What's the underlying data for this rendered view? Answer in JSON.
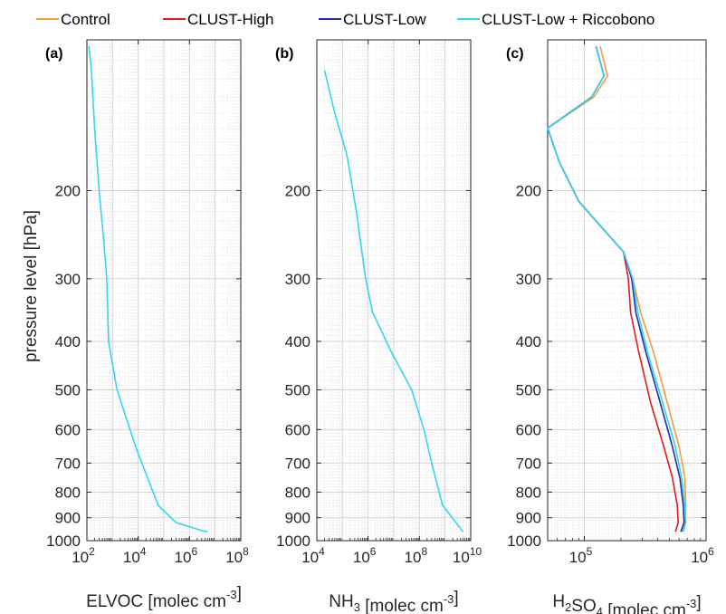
{
  "legend": [
    {
      "label": "Control",
      "color": "#f39c3c"
    },
    {
      "label": "CLUST-High",
      "color": "#e31a1c"
    },
    {
      "label": "CLUST-Low",
      "color": "#1f2fa8"
    },
    {
      "label": "CLUST-Low + Riccobono",
      "color": "#33d6f0"
    }
  ],
  "ylabel": "pressure level [hPa]",
  "chart_data": [
    {
      "type": "line",
      "panel_label": "(a)",
      "xlabel": "ELVOC [molec cm-3]",
      "xscale": "log",
      "xlim": [
        100,
        100000000
      ],
      "xticks": [
        100,
        10000,
        1000000,
        100000000
      ],
      "yscale": "log",
      "ylim": [
        1000,
        100
      ],
      "yticks": [
        200,
        300,
        400,
        500,
        600,
        700,
        800,
        900,
        1000
      ],
      "grid": true,
      "series": [
        {
          "name": "CLUST-Low + Riccobono",
          "x": [
            120,
            150,
            200,
            300,
            450,
            600,
            700,
            1500,
            8000,
            60000,
            300000,
            3000000,
            5000000
          ],
          "y": [
            103,
            115,
            150,
            200,
            250,
            300,
            400,
            500,
            650,
            850,
            920,
            955,
            960
          ]
        }
      ]
    },
    {
      "type": "line",
      "panel_label": "(b)",
      "xlabel": "NH3 [molec cm-3]",
      "xscale": "log",
      "xlim": [
        10000,
        10000000000
      ],
      "xticks": [
        10000,
        1000000,
        100000000,
        10000000000
      ],
      "yscale": "log",
      "ylim": [
        1000,
        100
      ],
      "yticks": [
        200,
        300,
        400,
        500,
        600,
        700,
        800,
        900,
        1000
      ],
      "grid": true,
      "series": [
        {
          "name": "CLUST-Low + Riccobono",
          "x": [
            20000,
            50000,
            150000,
            350000,
            600000,
            800000,
            1500000,
            8000000,
            50000000,
            150000000,
            300000000,
            800000000,
            5000000000
          ],
          "y": [
            115,
            140,
            170,
            220,
            270,
            300,
            350,
            420,
            500,
            600,
            700,
            850,
            960
          ]
        }
      ]
    },
    {
      "type": "line",
      "panel_label": "(c)",
      "xlabel": "H2SO4 [molec cm-3]",
      "xscale": "log",
      "xlim": [
        50000,
        1000000
      ],
      "xticks": [
        100000,
        1000000
      ],
      "yscale": "log",
      "ylim": [
        1000,
        100
      ],
      "yticks": [
        200,
        300,
        400,
        500,
        600,
        700,
        800,
        900,
        1000
      ],
      "grid": true,
      "series": [
        {
          "name": "Control",
          "x": [
            135000,
            155000,
            120000,
            50000,
            62000,
            90000,
            135000,
            210000,
            250000,
            290000,
            370000,
            480000,
            600000,
            670000,
            680000,
            670000,
            640000
          ],
          "y": [
            103,
            118,
            130,
            150,
            175,
            210,
            235,
            265,
            300,
            350,
            420,
            530,
            650,
            750,
            850,
            920,
            960
          ]
        },
        {
          "name": "CLUST-High",
          "x": [
            125000,
            145000,
            115000,
            50000,
            62000,
            90000,
            135000,
            210000,
            230000,
            240000,
            280000,
            350000,
            450000,
            530000,
            580000,
            590000,
            560000
          ],
          "y": [
            103,
            118,
            130,
            150,
            175,
            210,
            235,
            265,
            300,
            350,
            420,
            530,
            650,
            750,
            850,
            920,
            960
          ]
        },
        {
          "name": "CLUST-Low",
          "x": [
            125000,
            145000,
            115000,
            50000,
            62000,
            90000,
            135000,
            210000,
            245000,
            265000,
            320000,
            420000,
            530000,
            610000,
            650000,
            660000,
            620000
          ],
          "y": [
            103,
            118,
            130,
            150,
            175,
            210,
            235,
            265,
            300,
            350,
            420,
            530,
            650,
            750,
            850,
            920,
            960
          ]
        },
        {
          "name": "CLUST-Low + Riccobono",
          "x": [
            125000,
            145000,
            115000,
            50000,
            62000,
            90000,
            135000,
            210000,
            250000,
            275000,
            330000,
            440000,
            560000,
            630000,
            670000,
            680000,
            650000
          ],
          "y": [
            103,
            118,
            130,
            150,
            175,
            210,
            235,
            265,
            300,
            350,
            420,
            530,
            650,
            750,
            850,
            920,
            960
          ]
        }
      ]
    }
  ]
}
